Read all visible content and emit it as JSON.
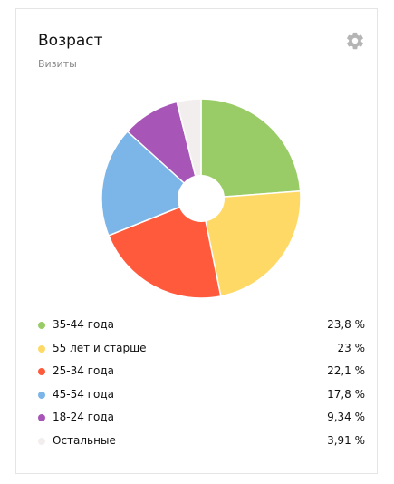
{
  "widget": {
    "title": "Возраст",
    "subtitle": "Визиты"
  },
  "icons": {
    "settings": "gear-icon"
  },
  "chart_data": {
    "type": "pie",
    "donut": true,
    "start_angle_deg": 0,
    "direction": "clockwise",
    "series": [
      {
        "name": "35-44 года",
        "value": 23.8,
        "label": "23,8 %",
        "color": "#99cc66"
      },
      {
        "name": "55 лет и старше",
        "value": 23.0,
        "label": "23 %",
        "color": "#ffd966"
      },
      {
        "name": "25-34 года",
        "value": 22.1,
        "label": "22,1 %",
        "color": "#ff5a3c"
      },
      {
        "name": "45-54 года",
        "value": 17.8,
        "label": "17,8 %",
        "color": "#7cb5e8"
      },
      {
        "name": "18-24 года",
        "value": 9.34,
        "label": "9,34 %",
        "color": "#a855b8"
      },
      {
        "name": "Остальные",
        "value": 3.91,
        "label": "3,91 %",
        "color": "#f2eeee"
      }
    ]
  }
}
